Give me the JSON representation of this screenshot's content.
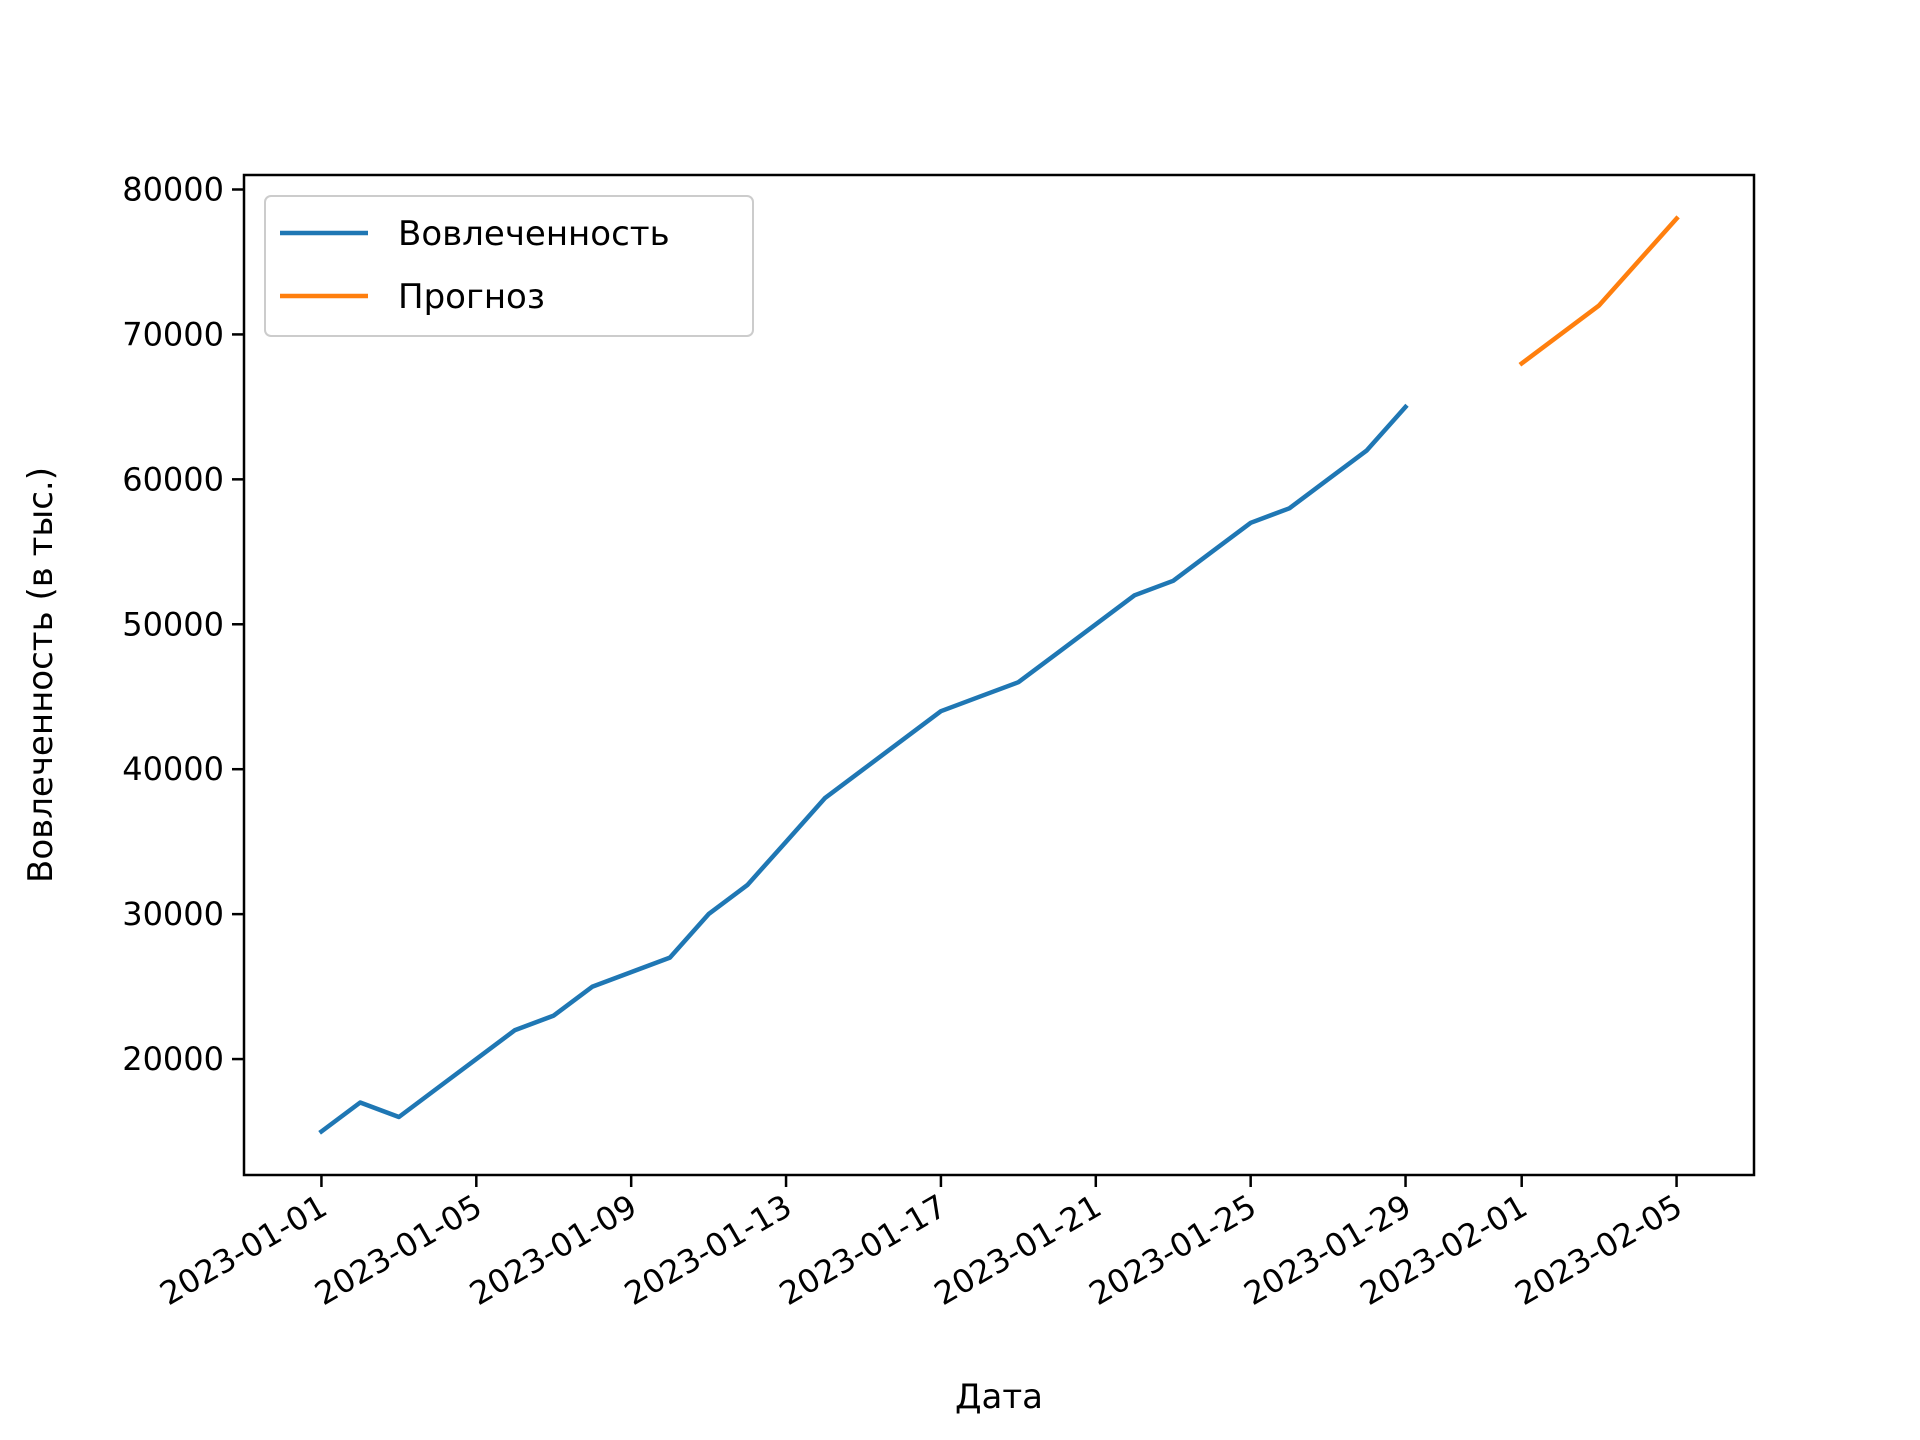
{
  "chart_data": {
    "type": "line",
    "title": "",
    "xlabel": "Дата",
    "ylabel": "Вовлеченность (в тыс.)",
    "xlim": [
      "2022-12-30",
      "2023-02-07"
    ],
    "ylim": [
      12000,
      81000
    ],
    "grid": false,
    "legend": {
      "position": "top-left"
    },
    "x_ticks": [
      "2023-01-01",
      "2023-01-05",
      "2023-01-09",
      "2023-01-13",
      "2023-01-17",
      "2023-01-21",
      "2023-01-25",
      "2023-01-29",
      "2023-02-01",
      "2023-02-05"
    ],
    "y_ticks": [
      20000,
      30000,
      40000,
      50000,
      60000,
      70000,
      80000
    ],
    "series": [
      {
        "name": "Вовлеченность",
        "color": "#1f77b4",
        "x": [
          "2023-01-01",
          "2023-01-02",
          "2023-01-03",
          "2023-01-04",
          "2023-01-05",
          "2023-01-06",
          "2023-01-07",
          "2023-01-08",
          "2023-01-09",
          "2023-01-10",
          "2023-01-11",
          "2023-01-12",
          "2023-01-13",
          "2023-01-14",
          "2023-01-15",
          "2023-01-16",
          "2023-01-17",
          "2023-01-18",
          "2023-01-19",
          "2023-01-20",
          "2023-01-21",
          "2023-01-22",
          "2023-01-23",
          "2023-01-24",
          "2023-01-25",
          "2023-01-26",
          "2023-01-27",
          "2023-01-28",
          "2023-01-29"
        ],
        "y": [
          15000,
          17000,
          16000,
          18000,
          20000,
          22000,
          23000,
          25000,
          26000,
          27000,
          30000,
          32000,
          35000,
          38000,
          40000,
          42000,
          44000,
          45000,
          46000,
          48000,
          50000,
          52000,
          53000,
          55000,
          57000,
          58000,
          60000,
          62000,
          65000
        ]
      },
      {
        "name": "Прогноз",
        "color": "#ff7f0e",
        "x": [
          "2023-02-01",
          "2023-02-03",
          "2023-02-05"
        ],
        "y": [
          68000,
          72000,
          78000
        ]
      }
    ]
  }
}
